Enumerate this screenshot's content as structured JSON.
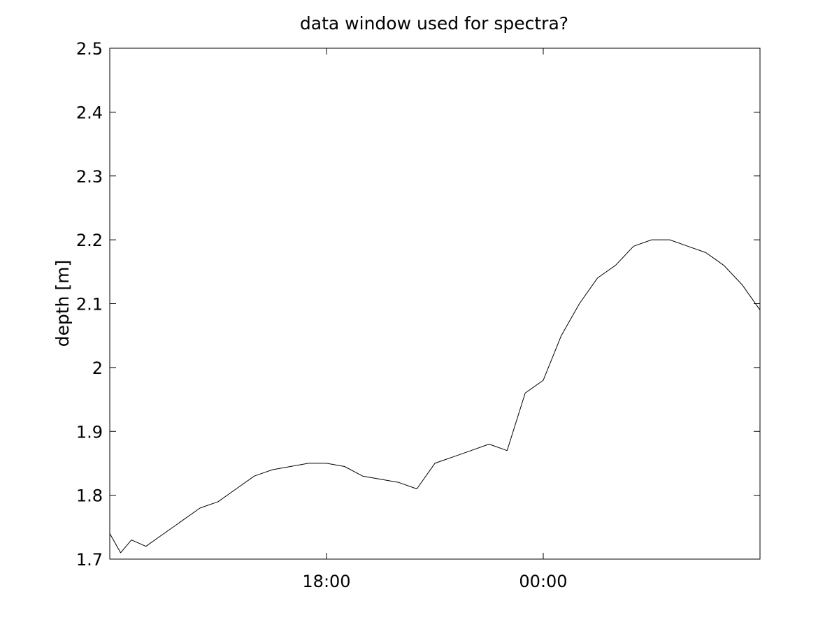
{
  "chart_data": {
    "type": "line",
    "title": "data window used for spectra?",
    "xlabel": "",
    "ylabel": "depth [m]",
    "x_tick_labels": [
      "18:00",
      "00:00"
    ],
    "x_ticks": [
      18,
      24
    ],
    "xlim": [
      12,
      30
    ],
    "y_tick_labels": [
      "1.7",
      "1.8",
      "1.9",
      "2",
      "2.1",
      "2.2",
      "2.3",
      "2.4",
      "2.5"
    ],
    "y_ticks": [
      1.7,
      1.8,
      1.9,
      2.0,
      2.1,
      2.2,
      2.3,
      2.4,
      2.5
    ],
    "ylim": [
      1.7,
      2.5
    ],
    "grid": false,
    "legend": "none",
    "line_color": "#000000",
    "series": [
      {
        "x": [
          12.0,
          12.3,
          12.6,
          13.0,
          13.5,
          14.0,
          14.5,
          15.0,
          15.5,
          16.0,
          16.5,
          17.0,
          17.5,
          18.0,
          18.5,
          19.0,
          19.5,
          20.0,
          20.5,
          21.0,
          21.5,
          22.0,
          22.5,
          23.0,
          23.5,
          24.0,
          24.5,
          25.0,
          25.5,
          26.0,
          26.5,
          27.0,
          27.5,
          28.0,
          28.5,
          29.0,
          29.5,
          30.0
        ],
        "values": [
          1.74,
          1.71,
          1.73,
          1.72,
          1.74,
          1.76,
          1.78,
          1.79,
          1.81,
          1.83,
          1.84,
          1.845,
          1.85,
          1.85,
          1.845,
          1.83,
          1.825,
          1.82,
          1.81,
          1.85,
          1.86,
          1.87,
          1.88,
          1.87,
          1.96,
          1.98,
          2.05,
          2.1,
          2.14,
          2.16,
          2.19,
          2.2,
          2.2,
          2.19,
          2.18,
          2.16,
          2.13,
          2.09
        ]
      }
    ]
  }
}
